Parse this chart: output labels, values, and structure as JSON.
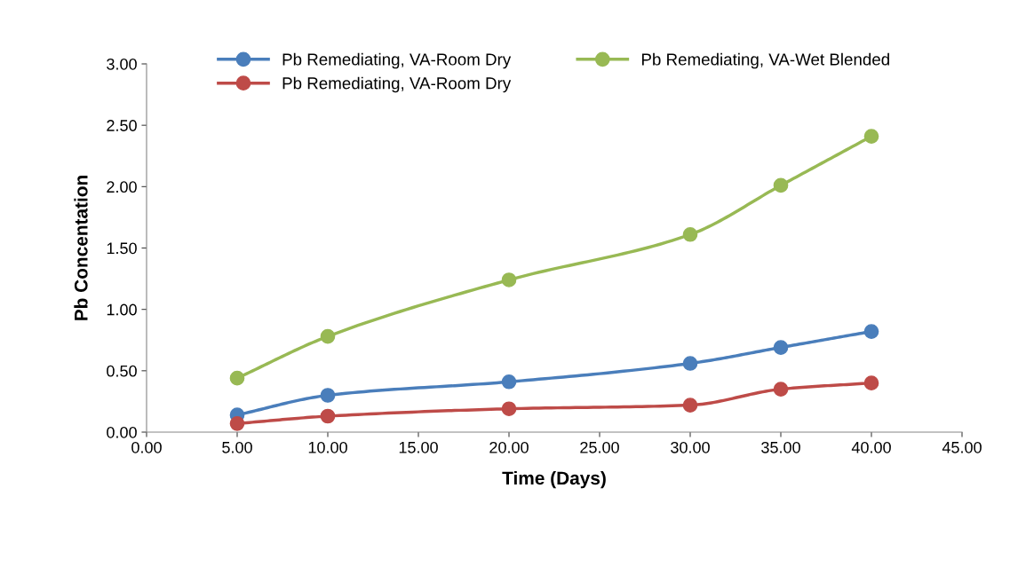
{
  "chart_data": {
    "type": "line",
    "xlabel": "Time (Days)",
    "ylabel": "Pb Concentation",
    "x": [
      5,
      10,
      20,
      30,
      35,
      40
    ],
    "series": [
      {
        "name": "Pb Remediating, VA-Room Dry",
        "color": "#4a7ebb",
        "values": [
          0.14,
          0.3,
          0.41,
          0.56,
          0.69,
          0.82
        ]
      },
      {
        "name": "Pb Remediating, VA-Room Dry",
        "color": "#be4b48",
        "values": [
          0.07,
          0.13,
          0.19,
          0.22,
          0.35,
          0.4
        ]
      },
      {
        "name": "Pb Remediating, VA-Wet Blended",
        "color": "#98b954",
        "values": [
          0.44,
          0.78,
          1.24,
          1.61,
          2.01,
          2.41
        ]
      }
    ],
    "xlim": [
      0,
      45
    ],
    "xticks": [
      {
        "value": 0,
        "label": "0.00"
      },
      {
        "value": 5,
        "label": "5.00"
      },
      {
        "value": 10,
        "label": "10.00"
      },
      {
        "value": 15,
        "label": "15.00"
      },
      {
        "value": 20,
        "label": "20.00"
      },
      {
        "value": 25,
        "label": "25.00"
      },
      {
        "value": 30,
        "label": "30.00"
      },
      {
        "value": 35,
        "label": "35.00"
      },
      {
        "value": 40,
        "label": "40.00"
      },
      {
        "value": 45,
        "label": "45.00"
      }
    ],
    "ylim": [
      0,
      3
    ],
    "yticks": [
      {
        "value": 0,
        "label": "0.00"
      },
      {
        "value": 0.5,
        "label": "0.50"
      },
      {
        "value": 1,
        "label": "1.00"
      },
      {
        "value": 1.5,
        "label": "1.50"
      },
      {
        "value": 2,
        "label": "2.00"
      },
      {
        "value": 2.5,
        "label": "2.50"
      },
      {
        "value": 3,
        "label": "3.00"
      }
    ],
    "grid": false,
    "legend": "top",
    "marker": "circle",
    "line_style": "solid"
  }
}
